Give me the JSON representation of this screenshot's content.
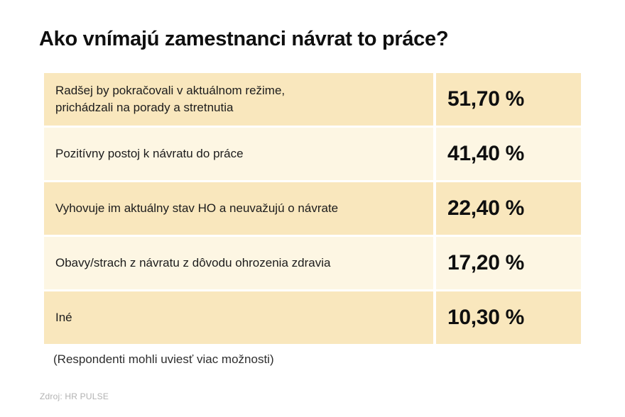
{
  "title": "Ako vnímajú zamestnanci návrat to práce?",
  "footnote": "(Respondenti mohli uviesť viac možnosti)",
  "source": "Zdroj: HR PULSE",
  "colors": {
    "background": "#FFFFFF",
    "row_dark": "#F9E7BD",
    "row_light": "#FDF6E3",
    "text": "#1C1C1C",
    "value_text": "#0F0F0F",
    "source_text": "#B2B2B2"
  },
  "chart_data": {
    "type": "table",
    "title": "Ako vnímajú zamestnanci návrat to práce?",
    "categories": [
      "Radšej by pokračovali v aktuálnom režime, prichádzali na porady a stretnutia",
      "Pozitívny postoj k návratu do práce",
      "Vyhovuje im aktuálny stav HO a neuvažujú o návrate",
      "Obavy/strach z návratu z dôvodu ohrozenia zdravia",
      "Iné"
    ],
    "values": [
      51.7,
      41.4,
      22.4,
      17.2,
      10.3
    ],
    "value_labels": [
      "51,70 %",
      "41,40 %",
      "22,40 %",
      "17,20 %",
      "10,30 %"
    ],
    "rows": [
      {
        "label": "Radšej by pokračovali v aktuálnom režime,\nprichádzali na porady a stretnutia",
        "value": "51,70 %"
      },
      {
        "label": "Pozitívny postoj k návratu do práce",
        "value": "41,40 %"
      },
      {
        "label": "Vyhovuje im aktuálny stav HO a neuvažujú o návrate",
        "value": "22,40 %"
      },
      {
        "label": "Obavy/strach z návratu z dôvodu ohrozenia zdravia",
        "value": "17,20 %"
      },
      {
        "label": "Iné",
        "value": "10,30 %"
      }
    ],
    "note": "(Respondenti mohli uviesť viac možnosti)",
    "source": "Zdroj: HR PULSE",
    "legend": false,
    "grid": false
  }
}
